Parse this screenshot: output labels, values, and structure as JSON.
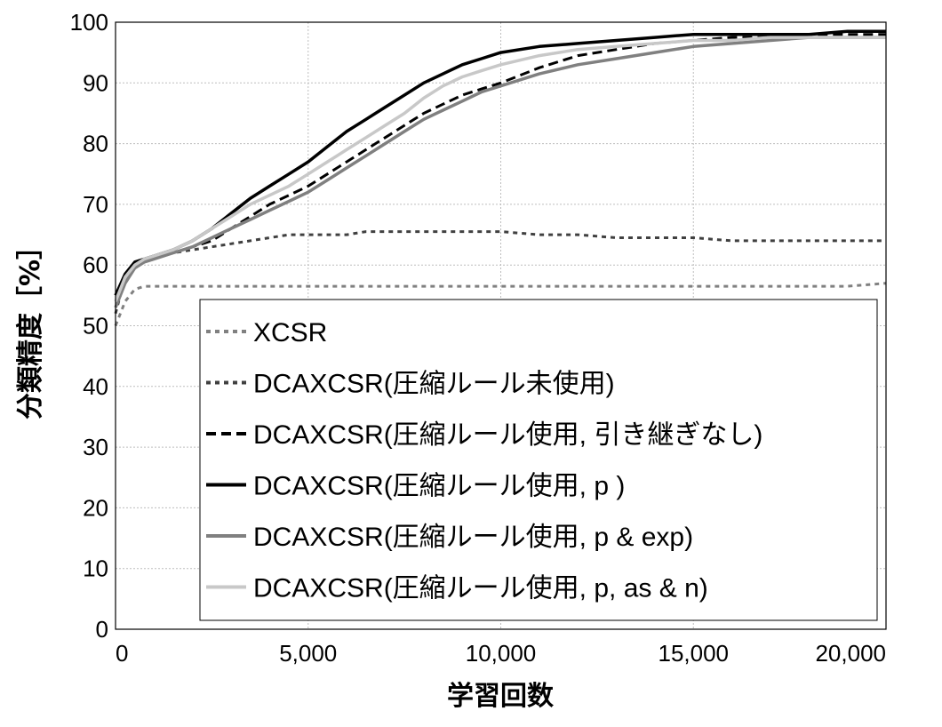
{
  "chart_data": {
    "type": "line",
    "title": "",
    "xlabel": "学習回数",
    "ylabel": "分類精度［%］",
    "xlim": [
      0,
      20000
    ],
    "ylim": [
      0,
      100
    ],
    "x_ticks": [
      "0",
      "5,000",
      "10,000",
      "15,000",
      "20,000"
    ],
    "y_ticks": [
      "0",
      "10",
      "20",
      "30",
      "40",
      "50",
      "60",
      "70",
      "80",
      "90",
      "100"
    ],
    "grid": true,
    "legend_position": "bottom-right",
    "x": [
      0,
      250,
      500,
      750,
      1000,
      1500,
      2000,
      2500,
      3000,
      3500,
      4000,
      4500,
      5000,
      5500,
      6000,
      6500,
      7000,
      7500,
      8000,
      8500,
      9000,
      9500,
      10000,
      11000,
      12000,
      13000,
      14000,
      15000,
      16000,
      17000,
      18000,
      19000,
      20000
    ],
    "series": [
      {
        "name": "XCSR",
        "color": "#808080",
        "dash": "dotted",
        "values": [
          50,
          54,
          56,
          56.5,
          56.5,
          56.5,
          56.5,
          56.5,
          56.5,
          56.5,
          56.5,
          56.5,
          56.5,
          56.5,
          56.5,
          56.5,
          56.5,
          56.5,
          56.5,
          56.5,
          56.5,
          56.5,
          56.5,
          56.5,
          56.5,
          56.5,
          56.5,
          56.5,
          56.5,
          56.5,
          56.5,
          56.5,
          57
        ]
      },
      {
        "name": "DCAXCSR(圧縮ルール未使用)",
        "color": "#404040",
        "dash": "dotted",
        "values": [
          52,
          58,
          60,
          61,
          61.5,
          62,
          62.5,
          63,
          63.5,
          64,
          64.5,
          65,
          65,
          65,
          65,
          65.5,
          65.5,
          65.5,
          65.5,
          65.5,
          65.5,
          65.5,
          65.5,
          65,
          65,
          64.5,
          64.5,
          64.5,
          64,
          64,
          64,
          64,
          64
        ]
      },
      {
        "name": "DCAXCSR(圧縮ルール使用, 引き継ぎなし)",
        "color": "#000000",
        "dash": "dashed",
        "values": [
          55,
          58,
          60,
          60.5,
          61,
          62,
          63,
          64,
          66,
          68,
          70,
          71.5,
          73,
          75,
          77,
          79,
          81,
          83,
          85,
          86.5,
          88,
          89,
          90,
          92.5,
          94.5,
          95.5,
          96.5,
          97,
          97.5,
          97.5,
          98,
          98,
          98
        ]
      },
      {
        "name": "DCAXCSR(圧縮ルール使用,  p )",
        "color": "#000000",
        "dash": "solid",
        "values": [
          55,
          58.5,
          60.5,
          61,
          61.5,
          62.5,
          64,
          66,
          68.5,
          71,
          73,
          75,
          77,
          79.5,
          82,
          84,
          86,
          88,
          90,
          91.5,
          93,
          94,
          95,
          96,
          96.5,
          97,
          97.5,
          98,
          98,
          98,
          98,
          98.5,
          98.5
        ]
      },
      {
        "name": "DCAXCSR(圧縮ルール使用, p & exp)",
        "color": "#808080",
        "dash": "solid",
        "values": [
          53,
          57,
          59.5,
          60.5,
          61,
          62,
          63,
          64.5,
          66,
          67.5,
          69,
          70.5,
          72,
          74,
          76,
          78,
          80,
          82,
          84,
          85.5,
          87,
          88.5,
          89.5,
          91.5,
          93,
          94,
          95,
          96,
          96.5,
          97,
          97.5,
          97.5,
          97.5
        ]
      },
      {
        "name": "DCAXCSR(圧縮ルール使用, p, as & n)",
        "color": "#c8c8c8",
        "dash": "solid",
        "values": [
          54,
          58,
          60,
          61,
          61.5,
          62.5,
          64,
          66,
          68,
          70,
          71.5,
          73,
          75,
          77,
          79,
          81,
          83,
          85,
          87.5,
          89.5,
          91,
          92,
          93,
          94.5,
          95.5,
          96,
          96.5,
          97,
          97,
          97.5,
          97.5,
          97.5,
          97.5
        ]
      }
    ]
  }
}
